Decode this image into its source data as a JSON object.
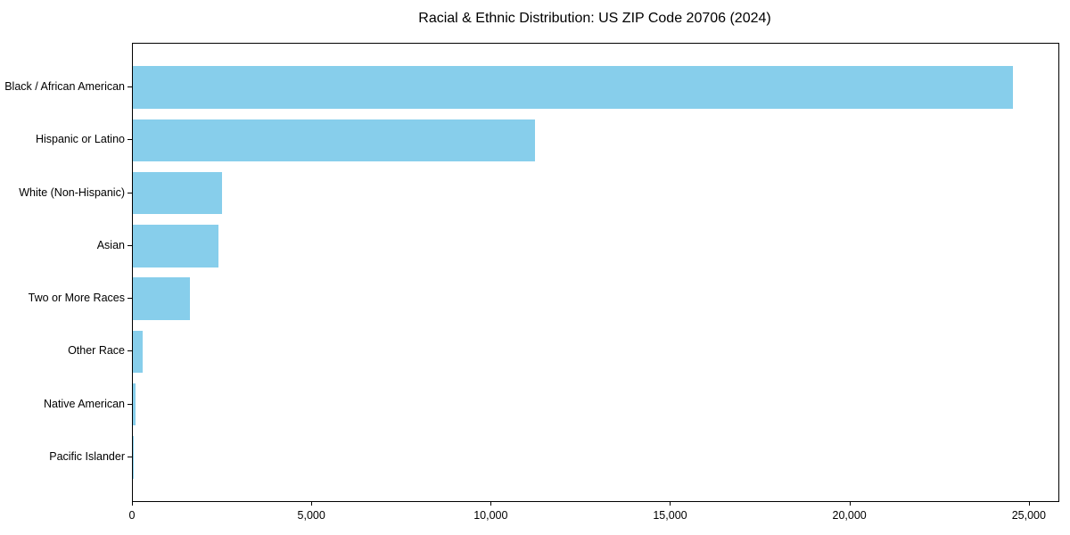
{
  "chart_data": {
    "type": "bar",
    "orientation": "horizontal",
    "title": "Racial & Ethnic Distribution: US ZIP Code 20706 (2024)",
    "categories": [
      "Black / African American",
      "Hispanic or Latino",
      "White (Non-Hispanic)",
      "Asian",
      "Two or More Races",
      "Other Race",
      "Native American",
      "Pacific Islander"
    ],
    "values": [
      24530,
      11210,
      2480,
      2390,
      1590,
      270,
      85,
      15
    ],
    "xlabel": "",
    "ylabel": "",
    "xlim": [
      0,
      25800
    ],
    "x_ticks": [
      0,
      5000,
      10000,
      15000,
      20000,
      25000
    ],
    "x_tick_labels": [
      "0",
      "5,000",
      "10,000",
      "15,000",
      "20,000",
      "25,000"
    ],
    "bar_color": "#87CEEB",
    "spine_color": "#000000",
    "text_color": "#000000",
    "grid": false,
    "legend": null
  }
}
